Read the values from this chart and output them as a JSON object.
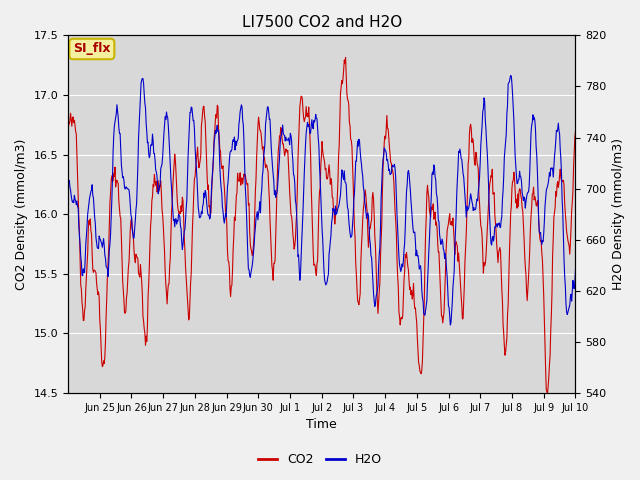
{
  "title": "LI7500 CO2 and H2O",
  "xlabel": "Time",
  "ylabel_left": "CO2 Density (mmol/m3)",
  "ylabel_right": "H2O Density (mmol/m3)",
  "ylim_left": [
    14.5,
    17.5
  ],
  "ylim_right": [
    540,
    820
  ],
  "yticks_left": [
    14.5,
    15.0,
    15.5,
    16.0,
    16.5,
    17.0,
    17.5
  ],
  "yticks_right": [
    540,
    580,
    620,
    660,
    700,
    740,
    780,
    820
  ],
  "xtick_labels": [
    "Jun 25",
    "Jun 26",
    "Jun 27",
    "Jun 28",
    "Jun 29",
    "Jun 30",
    "Jul 1",
    "Jul 2",
    "Jul 3",
    "Jul 4",
    "Jul 5",
    "Jul 6",
    "Jul 7",
    "Jul 8",
    "Jul 9",
    "Jul 10"
  ],
  "co2_color": "#cc0000",
  "h2o_color": "#0000cc",
  "fig_bg_color": "#f0f0f0",
  "plot_bg_color": "#d8d8d8",
  "label_tag": "SI_flx",
  "label_tag_bg": "#f5f0a0",
  "label_tag_border": "#c8b400",
  "n_points": 800,
  "seed": 42
}
